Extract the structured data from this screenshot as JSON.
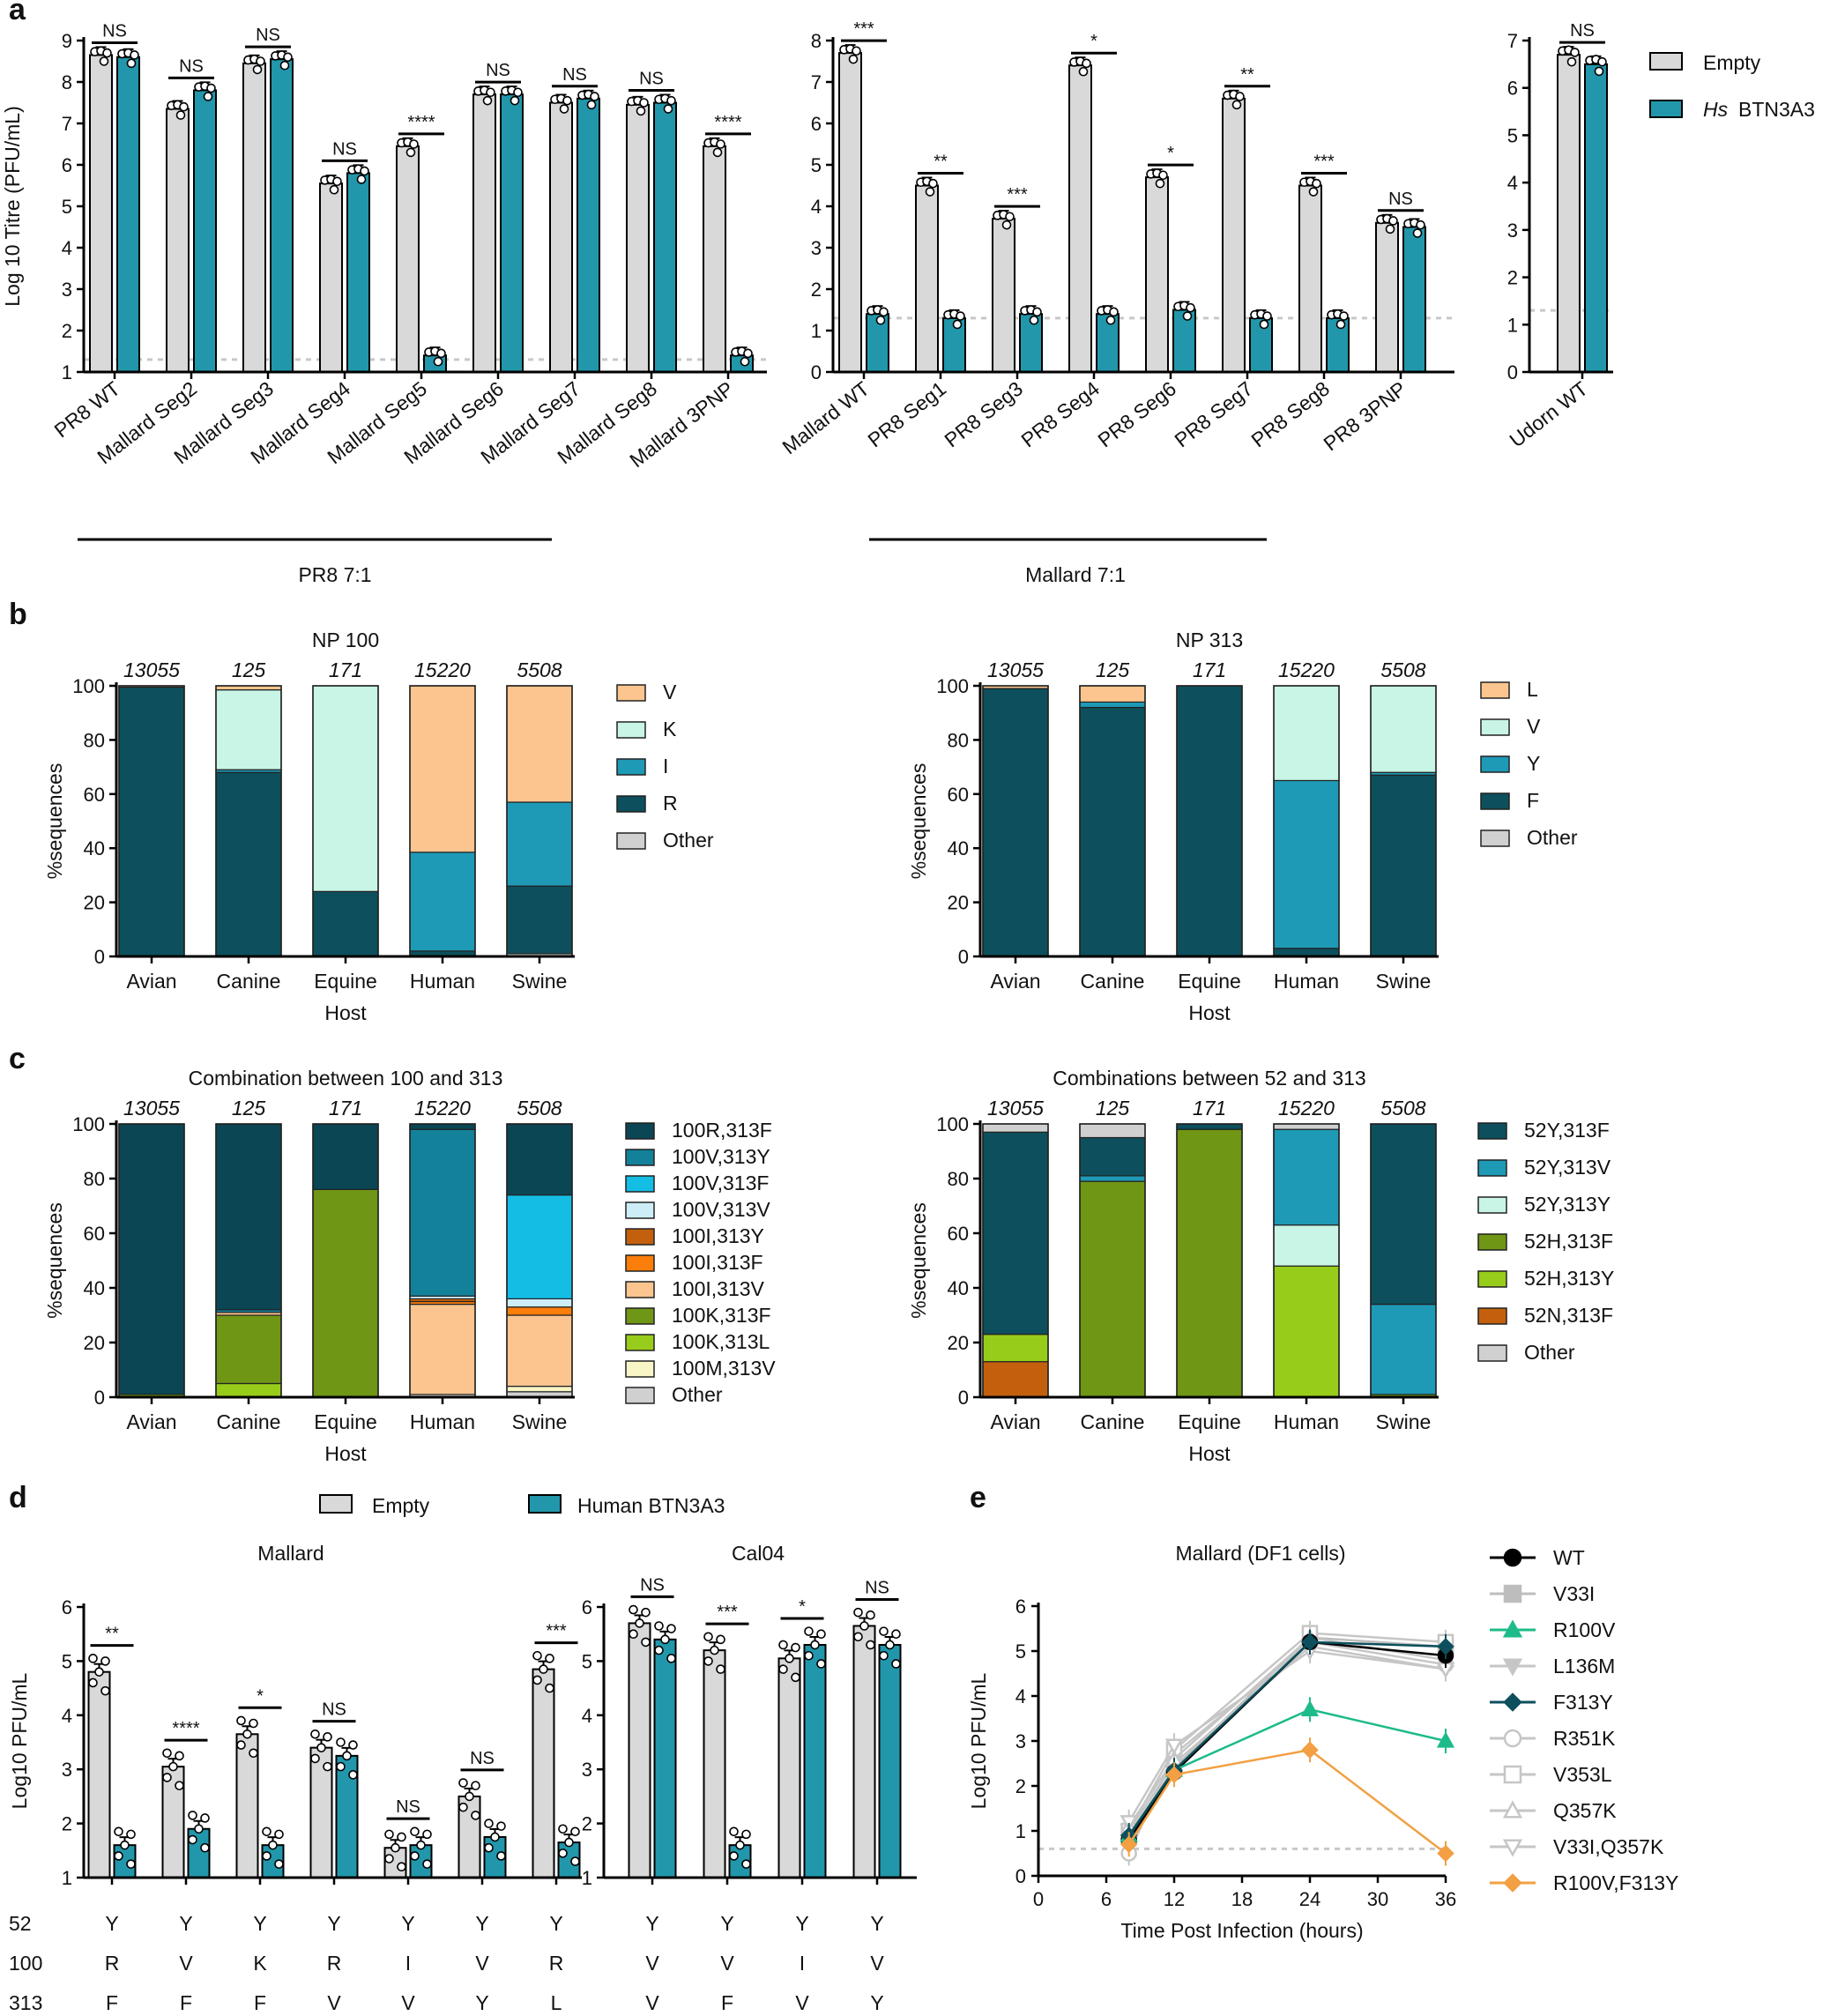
{
  "figure": {
    "panel_labels": [
      "a",
      "b",
      "c",
      "d",
      "e"
    ],
    "colors": {
      "empty": "#d9d9d9",
      "btn": "#2297ab",
      "np_V": "#fcc58f",
      "np_K": "#c8f5e5",
      "np_I": "#1e9ab6",
      "np_R": "#0d4f5c",
      "other": "#d0d0d0",
      "np_L": "#fcc58f",
      "np_Y": "#1e9ab6",
      "np_F": "#0d4f5c",
      "mut_wt": "#000000",
      "mut_r100v": "#1dbb8a",
      "mut_f313y": "#0d4f5c",
      "mut_double": "#f2a043",
      "mut_grey": "#bdbdbd",
      "threshold": "#c8c8c8"
    }
  },
  "chart_data": [
    {
      "id": "a1",
      "type": "bar",
      "panel": "a",
      "ylabel": "Log 10 Titre (PFU/mL)",
      "ylim": [
        1,
        9
      ],
      "yticks": [
        "1",
        "2",
        "3",
        "4",
        "5",
        "6",
        "7",
        "8",
        "9"
      ],
      "detection_limit": 1.3,
      "categories": [
        "PR8 WT",
        "Mallard Seg2",
        "Mallard Seg3",
        "Mallard Seg4",
        "Mallard Seg5",
        "Mallard Seg6",
        "Mallard Seg7",
        "Mallard Seg8",
        "Mallard 3PNP"
      ],
      "series": [
        {
          "name": "Empty",
          "values": [
            8.65,
            7.35,
            8.45,
            5.55,
            6.45,
            7.7,
            7.5,
            7.45,
            6.45
          ]
        },
        {
          "name": "Hs BTN3A3",
          "values": [
            8.6,
            7.8,
            8.55,
            5.8,
            1.4,
            7.7,
            7.6,
            7.5,
            1.4
          ]
        }
      ],
      "significance": [
        "NS",
        "NS",
        "NS",
        "NS",
        "****",
        "NS",
        "NS",
        "NS",
        "****"
      ],
      "group_label": "PR8 7:1"
    },
    {
      "id": "a2",
      "type": "bar",
      "panel": "a",
      "ylim": [
        0,
        8
      ],
      "yticks": [
        "0",
        "1",
        "2",
        "3",
        "4",
        "5",
        "6",
        "7",
        "8"
      ],
      "detection_limit": 1.3,
      "categories": [
        "Mallard WT",
        "PR8 Seg1",
        "PR8 Seg3",
        "PR8 Seg4",
        "PR8 Seg6",
        "PR8 Seg7",
        "PR8 Seg8",
        "PR8 3PNP"
      ],
      "series": [
        {
          "name": "Empty",
          "values": [
            7.7,
            4.5,
            3.7,
            7.4,
            4.7,
            6.6,
            4.5,
            3.6
          ]
        },
        {
          "name": "Hs BTN3A3",
          "values": [
            1.4,
            1.3,
            1.4,
            1.4,
            1.5,
            1.3,
            1.3,
            3.5
          ]
        }
      ],
      "significance": [
        "***",
        "**",
        "***",
        "*",
        "*",
        "**",
        "***",
        "NS"
      ],
      "group_label": "Mallard 7:1"
    },
    {
      "id": "a3",
      "type": "bar",
      "panel": "a",
      "ylim": [
        0,
        7
      ],
      "yticks": [
        "0",
        "1",
        "2",
        "3",
        "4",
        "5",
        "6",
        "7"
      ],
      "detection_limit": 1.3,
      "categories": [
        "Udorn WT"
      ],
      "series": [
        {
          "name": "Empty",
          "values": [
            6.7
          ]
        },
        {
          "name": "Hs BTN3A3",
          "values": [
            6.5
          ]
        }
      ],
      "significance": [
        "NS"
      ],
      "legend": {
        "empty": "Empty",
        "btn_prefix": "Hs",
        "btn": "BTN3A3"
      }
    },
    {
      "id": "b1",
      "type": "stacked-bar",
      "panel": "b",
      "title": "NP 100",
      "xlabel": "Host",
      "ylabel": "%sequences",
      "ylim": [
        0,
        100
      ],
      "yticks": [
        "0",
        "20",
        "40",
        "60",
        "80",
        "100"
      ],
      "categories": [
        "Avian",
        "Canine",
        "Equine",
        "Human",
        "Swine"
      ],
      "counts": [
        "13055",
        "125",
        "171",
        "15220",
        "5508"
      ],
      "series": [
        {
          "name": "Other",
          "key": "other",
          "values": [
            0,
            0,
            0,
            0,
            1
          ]
        },
        {
          "name": "R",
          "key": "np_R",
          "values": [
            99.5,
            68,
            24,
            2,
            25
          ]
        },
        {
          "name": "I",
          "key": "np_I",
          "values": [
            0,
            1,
            0,
            36.5,
            31
          ]
        },
        {
          "name": "K",
          "key": "np_K",
          "values": [
            0,
            29.5,
            76,
            0,
            0
          ]
        },
        {
          "name": "V",
          "key": "np_V",
          "values": [
            0.5,
            1.5,
            0,
            61.5,
            43
          ]
        }
      ],
      "legend_order": [
        "V",
        "K",
        "I",
        "R",
        "Other"
      ]
    },
    {
      "id": "b2",
      "type": "stacked-bar",
      "panel": "b",
      "title": "NP 313",
      "xlabel": "Host",
      "ylabel": "%sequences",
      "ylim": [
        0,
        100
      ],
      "yticks": [
        "0",
        "20",
        "40",
        "60",
        "80",
        "100"
      ],
      "categories": [
        "Avian",
        "Canine",
        "Equine",
        "Human",
        "Swine"
      ],
      "counts": [
        "13055",
        "125",
        "171",
        "15220",
        "5508"
      ],
      "series": [
        {
          "name": "Other",
          "key": "other",
          "values": [
            0,
            0,
            0,
            0,
            0
          ]
        },
        {
          "name": "F",
          "key": "np_F",
          "values": [
            99,
            92,
            100,
            3,
            67
          ]
        },
        {
          "name": "Y",
          "key": "np_Y",
          "values": [
            0,
            2,
            0,
            62,
            1
          ]
        },
        {
          "name": "V",
          "key": "np_K",
          "values": [
            0,
            0,
            0,
            35,
            32
          ]
        },
        {
          "name": "L",
          "key": "np_L",
          "values": [
            1,
            6,
            0,
            0,
            0
          ]
        }
      ],
      "legend_order": [
        "L",
        "V",
        "Y",
        "F",
        "Other"
      ]
    },
    {
      "id": "c1",
      "type": "stacked-bar",
      "panel": "c",
      "title": "Combination between 100 and 313",
      "xlabel": "Host",
      "ylabel": "%sequences",
      "ylim": [
        0,
        100
      ],
      "yticks": [
        "0",
        "20",
        "40",
        "60",
        "80",
        "100"
      ],
      "categories": [
        "Avian",
        "Canine",
        "Equine",
        "Human",
        "Swine"
      ],
      "counts": [
        "13055",
        "125",
        "171",
        "15220",
        "5508"
      ],
      "series": [
        {
          "name": "Other",
          "color": "#d0d0d0",
          "values": [
            0,
            0,
            0,
            1,
            2
          ]
        },
        {
          "name": "100M,313V",
          "color": "#f8f5c6",
          "values": [
            0,
            0,
            0,
            0,
            2
          ]
        },
        {
          "name": "100K,313L",
          "color": "#98cc1a",
          "values": [
            0,
            5,
            0,
            0,
            0
          ]
        },
        {
          "name": "100K,313F",
          "color": "#6f9615",
          "values": [
            1,
            25,
            76,
            0,
            0
          ]
        },
        {
          "name": "100I,313V",
          "color": "#fcc58f",
          "values": [
            0,
            1,
            0,
            33,
            26
          ]
        },
        {
          "name": "100I,313F",
          "color": "#fb7d0a",
          "values": [
            0,
            0,
            0,
            1,
            3
          ]
        },
        {
          "name": "100I,313Y",
          "color": "#c4600d",
          "values": [
            0,
            0,
            0,
            1,
            0
          ]
        },
        {
          "name": "100V,313V",
          "color": "#cdeef8",
          "values": [
            0,
            0,
            0,
            1,
            3
          ]
        },
        {
          "name": "100V,313F",
          "color": "#14bde3",
          "values": [
            0,
            0,
            0,
            0,
            38
          ]
        },
        {
          "name": "100V,313Y",
          "color": "#14819b",
          "values": [
            0,
            1,
            0,
            61,
            0
          ]
        },
        {
          "name": "100R,313F",
          "color": "#0b4654",
          "values": [
            99,
            68,
            24,
            2,
            26
          ]
        }
      ],
      "legend_order": [
        "100R,313F",
        "100V,313Y",
        "100V,313F",
        "100V,313V",
        "100I,313Y",
        "100I,313F",
        "100I,313V",
        "100K,313F",
        "100K,313L",
        "100M,313V",
        "Other"
      ]
    },
    {
      "id": "c2",
      "type": "stacked-bar",
      "panel": "c",
      "title": "Combinations between 52 and 313",
      "xlabel": "Host",
      "ylabel": "%sequences",
      "ylim": [
        0,
        100
      ],
      "yticks": [
        "0",
        "20",
        "40",
        "60",
        "80",
        "100"
      ],
      "categories": [
        "Avian",
        "Canine",
        "Equine",
        "Human",
        "Swine"
      ],
      "counts": [
        "13055",
        "125",
        "171",
        "15220",
        "5508"
      ],
      "series": [
        {
          "name": "52N,313F",
          "color": "#c4600d",
          "values": [
            13,
            0,
            0,
            0,
            0
          ]
        },
        {
          "name": "52H,313Y",
          "color": "#98cc1a",
          "values": [
            10,
            0,
            0,
            48,
            0
          ]
        },
        {
          "name": "52H,313F",
          "color": "#6f9615",
          "values": [
            0,
            79,
            98,
            0,
            1
          ]
        },
        {
          "name": "52Y,313Y",
          "color": "#c8f5e5",
          "values": [
            0,
            0,
            0,
            15,
            0
          ]
        },
        {
          "name": "52Y,313V",
          "color": "#1e9ab6",
          "values": [
            0,
            2,
            0,
            35,
            33
          ]
        },
        {
          "name": "52Y,313F",
          "color": "#0d4f5c",
          "values": [
            74,
            14,
            2,
            0,
            66
          ]
        },
        {
          "name": "Other",
          "color": "#d0d0d0",
          "values": [
            3,
            5,
            0,
            2,
            0
          ]
        }
      ],
      "legend_order": [
        "52Y,313F",
        "52Y,313V",
        "52Y,313Y",
        "52H,313F",
        "52H,313Y",
        "52N,313F",
        "Other"
      ]
    },
    {
      "id": "d1",
      "type": "bar",
      "panel": "d",
      "title": "Mallard",
      "ylabel": "Log10 PFU/mL",
      "ylim": [
        1,
        6
      ],
      "yticks": [
        "1",
        "2",
        "3",
        "4",
        "5",
        "6"
      ],
      "categories": [
        "1",
        "2",
        "3",
        "4",
        "5",
        "6",
        "7"
      ],
      "series": [
        {
          "name": "Empty",
          "values": [
            4.8,
            3.05,
            3.65,
            3.4,
            1.55,
            2.5,
            4.85
          ]
        },
        {
          "name": "Human BTN3A3",
          "values": [
            1.6,
            1.9,
            1.6,
            3.25,
            1.6,
            1.75,
            1.65
          ]
        }
      ],
      "significance": [
        "**",
        "****",
        "*",
        "NS",
        "NS",
        "NS",
        "***"
      ],
      "residues": {
        "rows": [
          "52",
          "100",
          "313"
        ],
        "values": [
          [
            "Y",
            "Y",
            "Y",
            "Y",
            "Y",
            "Y",
            "Y"
          ],
          [
            "R",
            "V",
            "K",
            "R",
            "I",
            "V",
            "R"
          ],
          [
            "F",
            "F",
            "F",
            "V",
            "V",
            "Y",
            "L"
          ]
        ]
      }
    },
    {
      "id": "d2",
      "type": "bar",
      "panel": "d",
      "title": "Cal04",
      "ylim": [
        1,
        6
      ],
      "yticks": [
        "1",
        "2",
        "3",
        "4",
        "5",
        "6"
      ],
      "categories": [
        "1",
        "2",
        "3",
        "4"
      ],
      "series": [
        {
          "name": "Empty",
          "values": [
            5.7,
            5.2,
            5.05,
            5.65
          ]
        },
        {
          "name": "Human BTN3A3",
          "values": [
            5.4,
            1.6,
            5.3,
            5.3
          ]
        }
      ],
      "significance": [
        "NS",
        "***",
        "*",
        "NS"
      ],
      "residues": {
        "values": [
          [
            "Y",
            "Y",
            "Y",
            "Y"
          ],
          [
            "V",
            "V",
            "I",
            "V"
          ],
          [
            "V",
            "F",
            "V",
            "Y"
          ]
        ]
      },
      "legend": {
        "empty": "Empty",
        "btn": "Human BTN3A3"
      }
    },
    {
      "id": "e",
      "type": "line",
      "panel": "e",
      "title": "Mallard  (DF1 cells)",
      "xlabel": "Time Post Infection (hours)",
      "ylabel": "Log10 PFU/mL",
      "xlim": [
        0,
        36
      ],
      "ylim": [
        0,
        6
      ],
      "xticks": [
        "0",
        "6",
        "12",
        "18",
        "24",
        "30",
        "36"
      ],
      "yticks": [
        "0",
        "1",
        "2",
        "3",
        "4",
        "5",
        "6"
      ],
      "x": [
        8,
        12,
        24,
        36
      ],
      "detection_limit": 0.6,
      "series": [
        {
          "name": "WT",
          "color": "#000000",
          "marker": "circle",
          "values": [
            0.8,
            2.3,
            5.2,
            4.9
          ]
        },
        {
          "name": "V33I",
          "color": "#bdbdbd",
          "marker": "square",
          "values": [
            0.9,
            2.4,
            5.3,
            5.1
          ]
        },
        {
          "name": "R100V",
          "color": "#1dbb8a",
          "marker": "triangle-up",
          "values": [
            0.9,
            2.35,
            3.7,
            3.0
          ]
        },
        {
          "name": "L136M",
          "color": "#c6c6c6",
          "marker": "triangle-down",
          "values": [
            1.0,
            2.5,
            5.1,
            4.6
          ]
        },
        {
          "name": "F313Y",
          "color": "#0d4f5c",
          "marker": "diamond",
          "values": [
            0.9,
            2.35,
            5.2,
            5.1
          ]
        },
        {
          "name": "R351K",
          "color": "#c6c6c6",
          "marker": "circle-open",
          "values": [
            0.5,
            2.7,
            5.2,
            4.7
          ]
        },
        {
          "name": "V353L",
          "color": "#c6c6c6",
          "marker": "square-open",
          "values": [
            1.0,
            2.8,
            5.4,
            5.2
          ]
        },
        {
          "name": "Q357K",
          "color": "#c6c6c6",
          "marker": "triangle-open",
          "values": [
            1.1,
            2.6,
            5.3,
            4.8
          ]
        },
        {
          "name": "V33I,Q357K",
          "color": "#c6c6c6",
          "marker": "triangle-down-open",
          "values": [
            1.2,
            2.9,
            5.0,
            4.6
          ]
        },
        {
          "name": "R100V,F313Y",
          "color": "#f2a043",
          "marker": "diamond",
          "values": [
            0.7,
            2.25,
            2.8,
            0.5
          ]
        }
      ]
    }
  ]
}
